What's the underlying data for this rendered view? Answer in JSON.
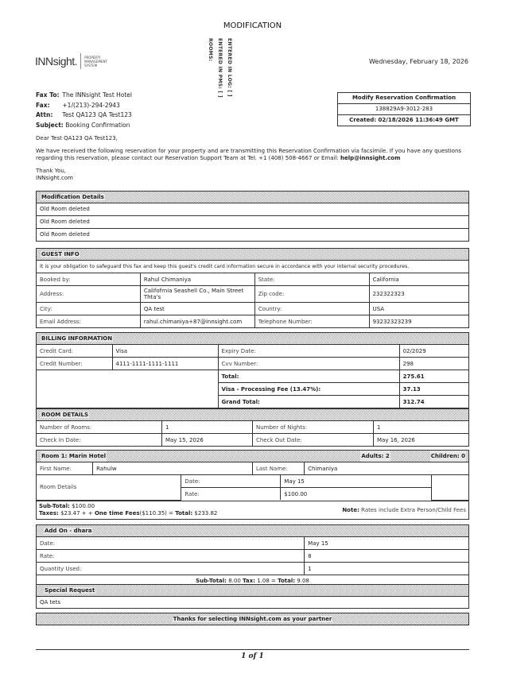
{
  "title": "MODIFICATION",
  "logo": {
    "name": "INNsight.",
    "tagline": [
      "PROPERTY",
      "MANAGEMENT",
      "SYSTEM"
    ]
  },
  "vertical_labels": [
    "ENTERED IN LOG: [ ]",
    "ENTERED IN PMS: [ ]",
    "ROOMS:"
  ],
  "date": "Wednesday, February 18, 2026",
  "fax_block": {
    "fax_to_label": "Fax To:",
    "fax_to": "The INNsight Test Hotel",
    "fax_label": "Fax:",
    "fax": "+1/(213)-294-2943",
    "attn_label": "Attn:",
    "attn": "Test QA123 QA Test123",
    "subject_label": "Subject:",
    "subject": "Booking Confirmation"
  },
  "confirmation": {
    "heading": "Modify Reservation Confirmation",
    "number": "138829A9-3012-283",
    "created": "Created: 02/18/2026 11:36:49 GMT"
  },
  "letter": {
    "greeting": "Dear Test QA123 QA Test123,",
    "body": "We have received the following reservation for your property and are transmitting this Reservation Confirmation via facsimile. If you have any questions regarding this reservation, please contact our Reservation Support Team at Tel: +1 (408) 508-4667 or Email: ",
    "email": "help@innsight.com",
    "thanks": "Thank You,",
    "signature": "INNsight.com"
  },
  "modification": {
    "heading": "Modification Details",
    "rows": [
      "Old Room deleted",
      "Old Room deleted",
      "Old Room deleted"
    ]
  },
  "guest": {
    "heading": "GUEST INFO",
    "notice": "It is your obligation to safeguard this fax and keep this guest's credit card information secure in accordance with your internal security procedures.",
    "rows": [
      [
        "Booked by:",
        "Rahul Chimaniya",
        "State:",
        "California"
      ],
      [
        "Address:",
        "Califofrnia Seashell Co., Main Street Thta's",
        "Zip code:",
        "232322323"
      ],
      [
        "City:",
        "QA test",
        "Country:",
        "USA"
      ],
      [
        "Email Address:",
        "rahul.chimaniya+87@innsight.com",
        "Telephone Number:",
        "93232323239"
      ]
    ]
  },
  "billing": {
    "heading": "BILLING INFORMATION",
    "rows": [
      [
        "Credit Card:",
        "Visa",
        "Expiry Date:",
        "02/2029"
      ],
      [
        "Credit Number:",
        "4111-1111-1111-1111",
        "Cvv Number:",
        "298"
      ]
    ],
    "totals": [
      [
        "Total:",
        "275.61"
      ],
      [
        "Visa - Processing Fee (13.47%):",
        "37.13"
      ],
      [
        "Grand Total:",
        "312.74"
      ]
    ]
  },
  "room_details": {
    "heading": "ROOM DETAILS",
    "rows": [
      [
        "Number of Rooms:",
        "1",
        "Number of Nights:",
        "1"
      ],
      [
        "Check In Date:",
        "May 15, 2026",
        "Check Out Date:",
        "May 16, 2026"
      ]
    ]
  },
  "room1": {
    "heading": "Room 1: Marin Hotel",
    "adults": "Adults: 2",
    "children": "Children: 0",
    "first_name_label": "First Name:",
    "first_name": "Rahulw",
    "last_name_label": "Last Name:",
    "last_name": "Chimaniya",
    "details_label": "Room Details",
    "date_label": "Date:",
    "date": "May 15",
    "rate_label": "Rate:",
    "rate": "$100.00",
    "subtotal_label": "Sub-Total:",
    "subtotal": "$100.00",
    "taxes_label": "Taxes:",
    "taxes": "$23.47 + +",
    "fees_label": "One time Fees",
    "fees": "($110.35) =",
    "total_label": "Total:",
    "total": "$233.82",
    "note_label": "Note:",
    "note": "Rates include Extra Person/Child Fees"
  },
  "addon": {
    "heading": "Add On - dhara",
    "rows": [
      [
        "Date:",
        "May 15"
      ],
      [
        "Rate:",
        "8"
      ],
      [
        "Quantity Used:",
        "1"
      ]
    ],
    "subtotal_label": "Sub-Total:",
    "subtotal": "8.00",
    "tax_label": "Tax:",
    "tax": "1.08 =",
    "total_label": "Total:",
    "total": "9.08"
  },
  "special": {
    "heading": "Special Request",
    "text": "QA tets"
  },
  "thanks_banner": "Thanks for selecting INNsight.com as your partner",
  "page_number": "1 of 1"
}
